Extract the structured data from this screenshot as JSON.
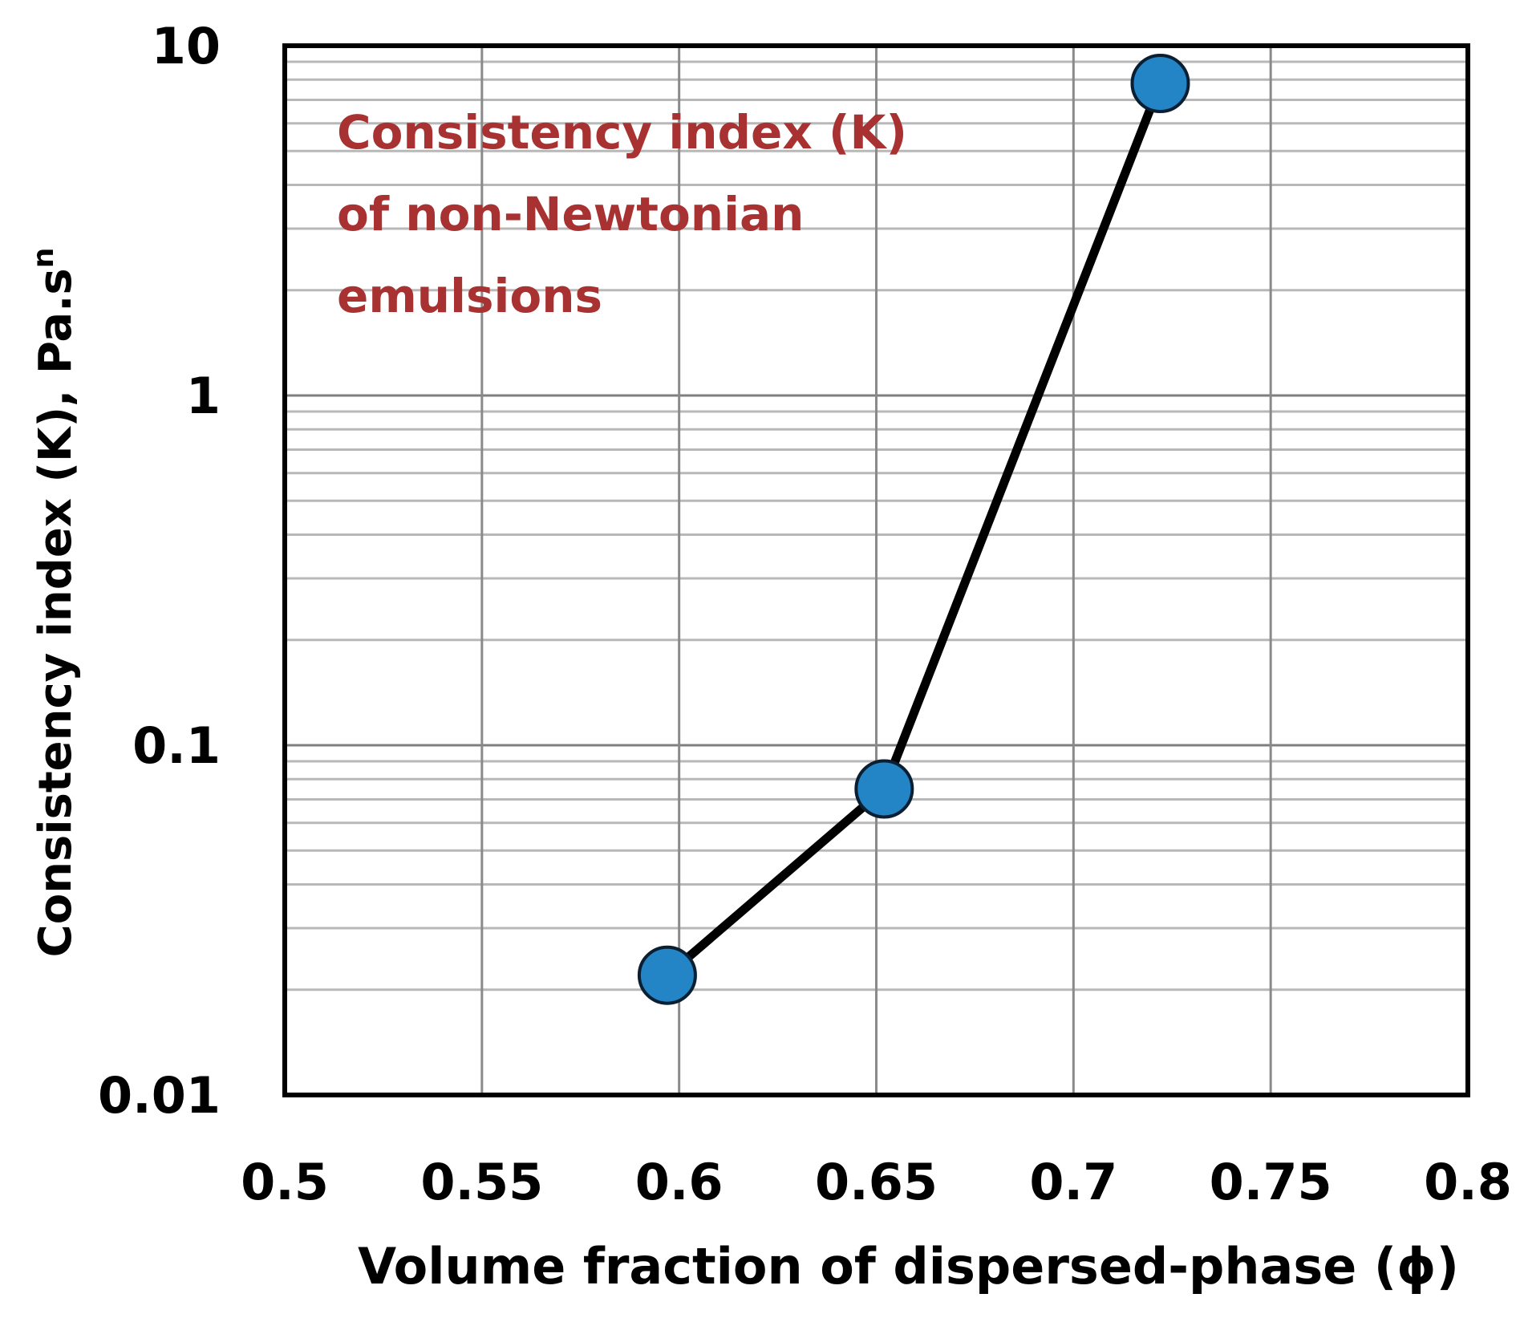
{
  "chart_data": {
    "type": "line",
    "x_axis": {
      "label": "Volume fraction of dispersed-phase (ϕ)",
      "range": [
        0.5,
        0.8
      ],
      "ticks": [
        "0.5",
        "0.55",
        "0.6",
        "0.65",
        "0.7",
        "0.75",
        "0.8"
      ],
      "scale": "linear"
    },
    "y_axis": {
      "label_main": "Consistency  index (K), Pa.s",
      "label_superscript": "n",
      "range": [
        0.01,
        10
      ],
      "ticks": [
        "0.01",
        "0.1",
        "1",
        "10"
      ],
      "scale": "log"
    },
    "grid": true,
    "legend": "none",
    "annotation": {
      "lines": [
        "Consistency index (K)",
        "of non-Newtonian",
        "emulsions"
      ],
      "color": "#a83232"
    },
    "series": [
      {
        "x": [
          0.597,
          0.652,
          0.722
        ],
        "y": [
          0.022,
          0.075,
          7.8
        ],
        "marker_color": "#2384c6",
        "line_color": "#000000"
      }
    ]
  }
}
